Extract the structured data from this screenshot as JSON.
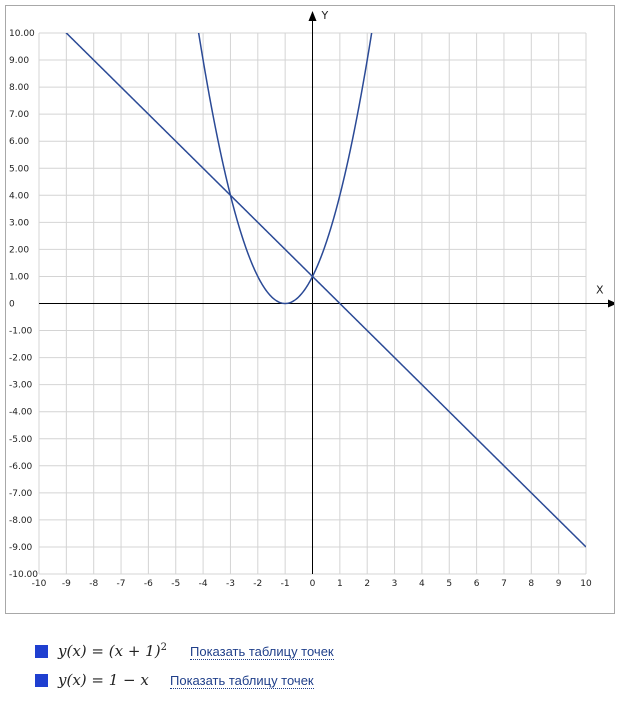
{
  "chart_data": {
    "type": "line",
    "xlabel": "X",
    "ylabel": "Y",
    "xlim": [
      -10,
      10
    ],
    "ylim": [
      -10,
      10
    ],
    "grid": true,
    "x_ticks": [
      "-10",
      "-9",
      "-8",
      "-7",
      "-6",
      "-5",
      "-4",
      "-3",
      "-2",
      "-1",
      "0",
      "1",
      "2",
      "3",
      "4",
      "5",
      "6",
      "7",
      "8",
      "9",
      "10"
    ],
    "y_ticks": [
      "10.00",
      "9.00",
      "8.00",
      "7.00",
      "6.00",
      "5.00",
      "4.00",
      "3.00",
      "2.00",
      "1.00",
      "0",
      "-1.00",
      "-2.00",
      "-3.00",
      "-4.00",
      "-5.00",
      "-6.00",
      "-7.00",
      "-8.00",
      "-9.00",
      "-10.00"
    ],
    "series": [
      {
        "formula": "(x+1)^2",
        "color": "#2b4a96"
      },
      {
        "formula": "1-x",
        "color": "#2b4a96"
      }
    ]
  },
  "legend": {
    "items": [
      {
        "formula_lhs": "y(x) = (x + 1)",
        "formula_sup": "2",
        "link": "Показать таблицу точек",
        "color": "#1f3fd0"
      },
      {
        "formula_lhs": "y(x) = 1 − x",
        "formula_sup": "",
        "link": "Показать таблицу точек",
        "color": "#1f3fd0"
      }
    ]
  }
}
